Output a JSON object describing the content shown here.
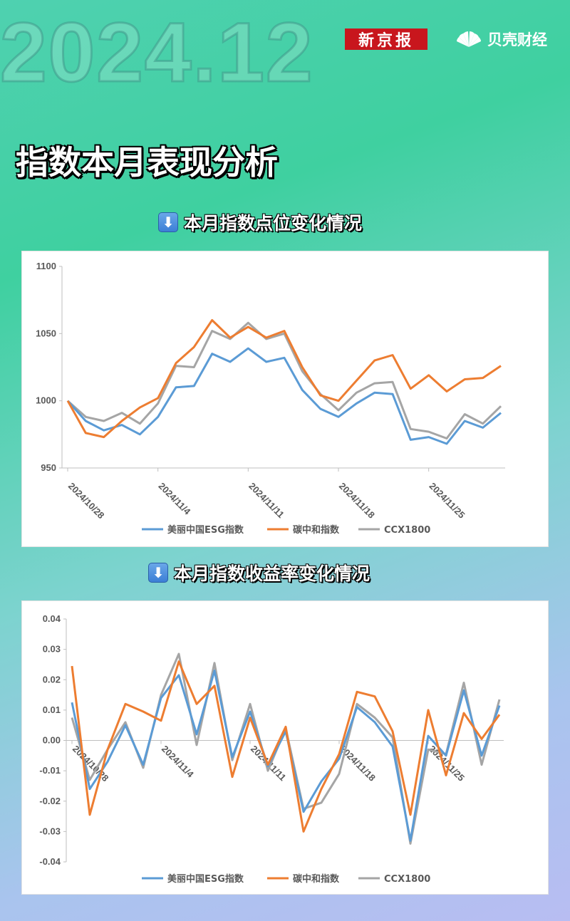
{
  "header": {
    "big_date": "2024.12",
    "logo_xjb": "新京报",
    "logo_bk": "贝壳财经"
  },
  "page_title": "指数本月表现分析",
  "colors": {
    "esg": "#5b9bd5",
    "carbon": "#ed7d31",
    "ccx": "#a5a5a5"
  },
  "chart_data": [
    {
      "type": "line",
      "title": "本月指数点位变化情况",
      "ylim": [
        950,
        1100
      ],
      "yticks": [
        950,
        1000,
        1050,
        1100
      ],
      "x_ticks": [
        "2024/10/28",
        "2024/11/4",
        "2024/11/11",
        "2024/11/18",
        "2024/11/25"
      ],
      "x": [
        "2024/10/28",
        "2024/10/29",
        "2024/10/30",
        "2024/10/31",
        "2024/11/1",
        "2024/11/4",
        "2024/11/5",
        "2024/11/6",
        "2024/11/7",
        "2024/11/8",
        "2024/11/11",
        "2024/11/12",
        "2024/11/13",
        "2024/11/14",
        "2024/11/15",
        "2024/11/18",
        "2024/11/19",
        "2024/11/20",
        "2024/11/21",
        "2024/11/22",
        "2024/11/25",
        "2024/11/26",
        "2024/11/27",
        "2024/11/28",
        "2024/11/29"
      ],
      "series": [
        {
          "name": "美丽中国ESG指数",
          "values": [
            1000,
            985,
            978,
            982,
            975,
            988,
            1010,
            1011,
            1035,
            1029,
            1039,
            1029,
            1032,
            1008,
            994,
            988,
            998,
            1006,
            1005,
            971,
            973,
            968,
            985,
            980,
            991
          ]
        },
        {
          "name": "碳中和指数",
          "values": [
            1000,
            976,
            973,
            985,
            995,
            1002,
            1028,
            1040,
            1060,
            1047,
            1055,
            1047,
            1052,
            1025,
            1004,
            1000,
            1015,
            1030,
            1034,
            1009,
            1019,
            1007,
            1016,
            1017,
            1026
          ]
        },
        {
          "name": "CCX1800",
          "values": [
            1000,
            988,
            985,
            991,
            983,
            998,
            1026,
            1025,
            1052,
            1046,
            1058,
            1046,
            1050,
            1022,
            1005,
            993,
            1006,
            1013,
            1014,
            979,
            977,
            972,
            990,
            983,
            996
          ]
        }
      ]
    },
    {
      "type": "line",
      "title": "本月指数收益率变化情况",
      "ylim": [
        -0.04,
        0.04
      ],
      "yticks": [
        -0.04,
        -0.03,
        -0.02,
        -0.01,
        0.0,
        0.01,
        0.02,
        0.03,
        0.04
      ],
      "x_ticks": [
        "2024/10/28",
        "2024/11/4",
        "2024/11/11",
        "2024/11/18",
        "2024/11/25"
      ],
      "x": [
        "2024/10/28",
        "2024/10/29",
        "2024/10/30",
        "2024/10/31",
        "2024/11/1",
        "2024/11/4",
        "2024/11/5",
        "2024/11/6",
        "2024/11/7",
        "2024/11/8",
        "2024/11/11",
        "2024/11/12",
        "2024/11/13",
        "2024/11/14",
        "2024/11/15",
        "2024/11/18",
        "2024/11/19",
        "2024/11/20",
        "2024/11/21",
        "2024/11/22",
        "2024/11/25",
        "2024/11/26",
        "2024/11/27",
        "2024/11/28",
        "2024/11/29"
      ],
      "series": [
        {
          "name": "美丽中国ESG指数",
          "values": [
            0.0125,
            -0.016,
            -0.007,
            0.005,
            -0.008,
            0.014,
            0.0215,
            0.002,
            0.023,
            -0.0055,
            0.0095,
            -0.0085,
            0.003,
            -0.0235,
            -0.0135,
            -0.006,
            0.011,
            0.006,
            -0.002,
            -0.033,
            0.0015,
            -0.005,
            0.0165,
            -0.005,
            0.0115
          ]
        },
        {
          "name": "碳中和指数",
          "values": [
            0.0245,
            -0.0245,
            -0.003,
            0.012,
            0.0095,
            0.0065,
            0.026,
            0.012,
            0.018,
            -0.012,
            0.0075,
            -0.008,
            0.0045,
            -0.03,
            -0.016,
            -0.0045,
            0.016,
            0.0145,
            0.003,
            -0.0245,
            0.01,
            -0.0115,
            0.009,
            0.0005,
            0.0085
          ]
        },
        {
          "name": "CCX1800",
          "values": [
            0.0075,
            -0.013,
            -0.003,
            0.006,
            -0.009,
            0.015,
            0.0285,
            -0.0015,
            0.0255,
            -0.0065,
            0.012,
            -0.01,
            0.004,
            -0.0225,
            -0.0205,
            -0.011,
            0.012,
            0.0075,
            0.001,
            -0.034,
            -0.003,
            -0.0045,
            0.019,
            -0.008,
            0.0135
          ]
        }
      ]
    }
  ]
}
